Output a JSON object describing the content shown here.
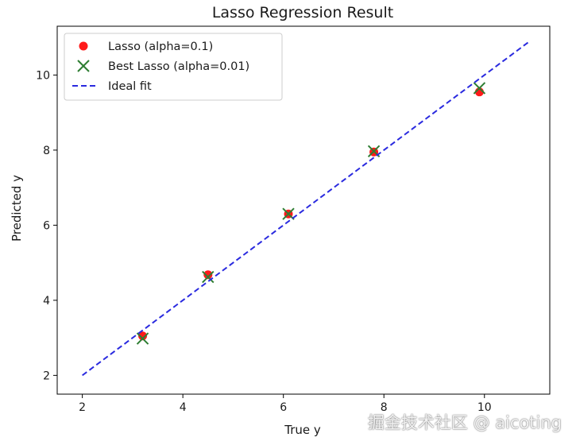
{
  "chart_data": {
    "type": "scatter",
    "title": "Lasso Regression Result",
    "xlabel": "True y",
    "ylabel": "Predicted y",
    "xlim": [
      1.5,
      11.3
    ],
    "ylim": [
      1.5,
      11.3
    ],
    "xticks": [
      2,
      4,
      6,
      8,
      10
    ],
    "yticks": [
      2,
      4,
      6,
      8,
      10
    ],
    "grid": false,
    "legend_position": "top-left",
    "series": [
      {
        "name": "Lasso (alpha=0.1)",
        "marker": "circle",
        "color": "#ff1a1a",
        "x": [
          3.2,
          4.5,
          6.1,
          7.8,
          9.9
        ],
        "y": [
          3.05,
          4.68,
          6.3,
          7.95,
          9.55
        ]
      },
      {
        "name": "Best Lasso (alpha=0.01)",
        "marker": "x",
        "color": "#2e7d32",
        "x": [
          3.2,
          4.5,
          6.1,
          7.8,
          9.9
        ],
        "y": [
          2.98,
          4.62,
          6.3,
          7.97,
          9.65
        ]
      },
      {
        "name": "Ideal fit",
        "style": "dashed-line",
        "color": "#2a2adf",
        "x": [
          2.0,
          10.9
        ],
        "y": [
          2.0,
          10.9
        ]
      }
    ]
  },
  "watermark": "掘金技术社区 @ aicoting"
}
